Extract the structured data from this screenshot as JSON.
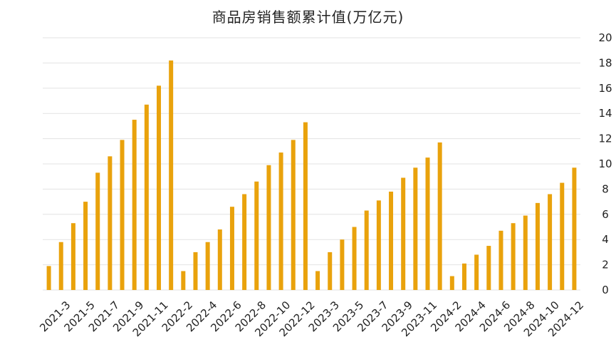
{
  "chart_data": {
    "type": "bar",
    "title": "商品房销售额累计值(万亿元)",
    "xlabel": "",
    "ylabel": "",
    "ylim": [
      0,
      20
    ],
    "yticks": [
      0,
      2,
      4,
      6,
      8,
      10,
      12,
      14,
      16,
      18,
      20
    ],
    "y_axis_position": "right",
    "grid": true,
    "bar_color": "#E9A20C",
    "categories": [
      "2021-2",
      "2021-3",
      "2021-4",
      "2021-5",
      "2021-6",
      "2021-7",
      "2021-8",
      "2021-9",
      "2021-10",
      "2021-11",
      "2021-12",
      "2022-2",
      "2022-3",
      "2022-4",
      "2022-5",
      "2022-6",
      "2022-7",
      "2022-8",
      "2022-9",
      "2022-10",
      "2022-11",
      "2022-12",
      "2023-2",
      "2023-3",
      "2023-4",
      "2023-5",
      "2023-6",
      "2023-7",
      "2023-8",
      "2023-9",
      "2023-10",
      "2023-11",
      "2023-12",
      "2024-2",
      "2024-3",
      "2024-4",
      "2024-5",
      "2024-6",
      "2024-7",
      "2024-8",
      "2024-9",
      "2024-10",
      "2024-11",
      "2024-12"
    ],
    "x_tick_labels_shown": [
      "2021-3",
      "2021-5",
      "2021-7",
      "2021-9",
      "2021-11",
      "2022-2",
      "2022-4",
      "2022-6",
      "2022-8",
      "2022-10",
      "2022-12",
      "2023-3",
      "2023-5",
      "2023-7",
      "2023-9",
      "2023-11",
      "2024-2",
      "2024-4",
      "2024-6",
      "2024-8",
      "2024-10",
      "2024-12"
    ],
    "values": [
      1.9,
      3.8,
      5.3,
      7.0,
      9.3,
      10.6,
      11.9,
      13.5,
      14.7,
      16.2,
      18.2,
      1.5,
      3.0,
      3.8,
      4.8,
      6.6,
      7.6,
      8.6,
      9.9,
      10.9,
      11.9,
      13.3,
      1.5,
      3.0,
      4.0,
      5.0,
      6.3,
      7.1,
      7.8,
      8.9,
      9.7,
      10.5,
      11.7,
      1.1,
      2.1,
      2.8,
      3.5,
      4.7,
      5.3,
      5.9,
      6.9,
      7.6,
      8.5,
      9.7
    ]
  }
}
